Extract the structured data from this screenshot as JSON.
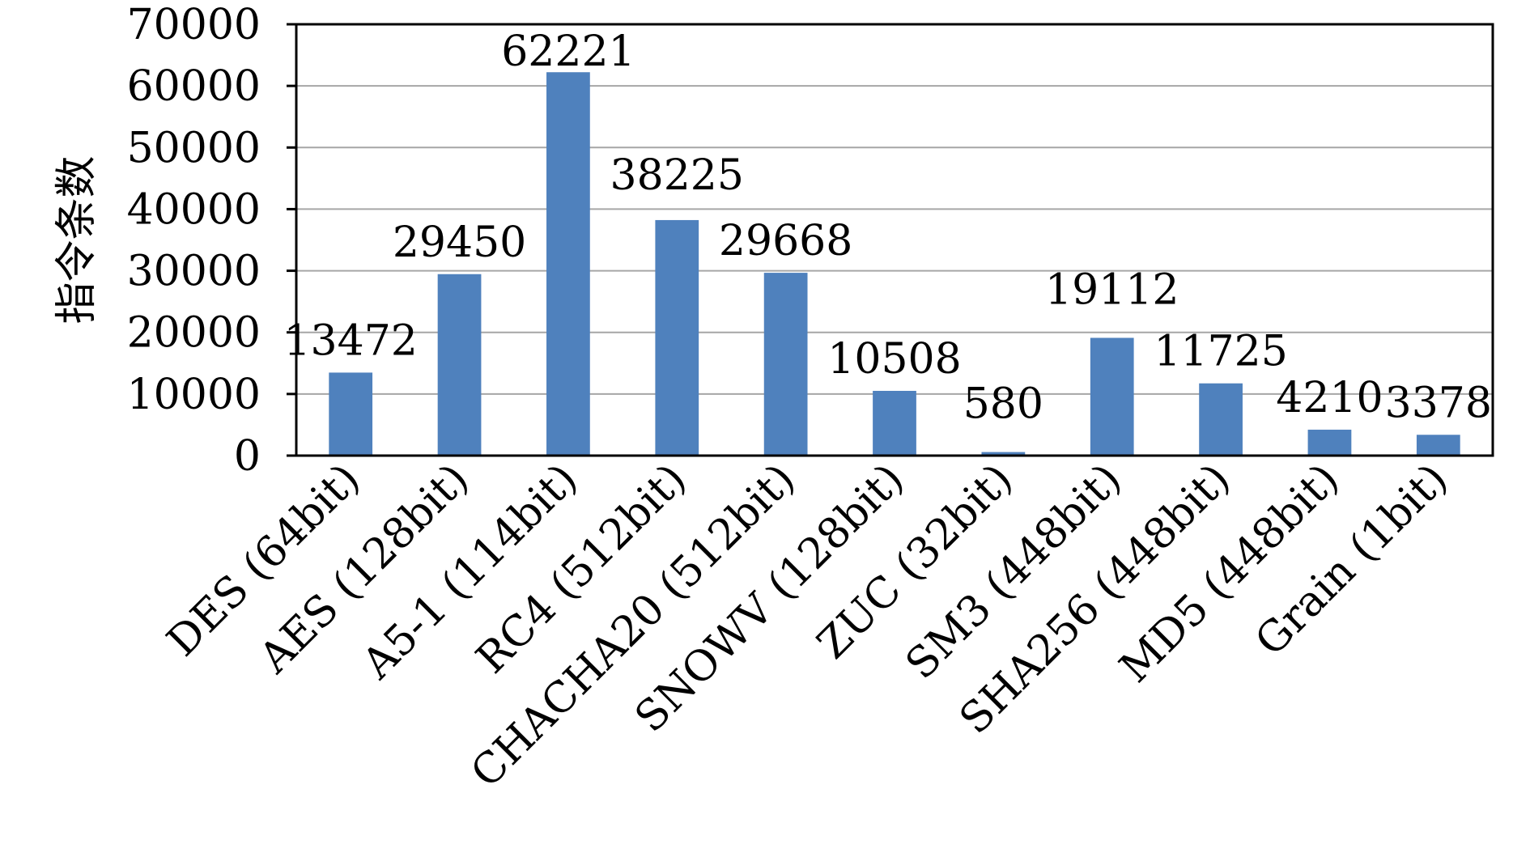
{
  "chart_data": {
    "type": "bar",
    "title": "",
    "xlabel": "",
    "ylabel": "指令条数",
    "ylim": [
      0,
      70000
    ],
    "yticks": [
      0,
      10000,
      20000,
      30000,
      40000,
      50000,
      60000,
      70000
    ],
    "ytick_labels": [
      "0",
      "10000",
      "20000",
      "30000",
      "40000",
      "50000",
      "60000",
      "70000"
    ],
    "grid": true,
    "legend": "none",
    "bar_color": "#4f81bd",
    "categories": [
      "DES (64bit)",
      "AES (128bit)",
      "A5-1 (114bit)",
      "RC4 (512bit)",
      "CHACHA20 (512bit)",
      "SNOWV (128bit)",
      "ZUC (32bit)",
      "SM3 (448bit)",
      "SHA256 (448bit)",
      "MD5 (448bit)",
      "Grain (1bit)"
    ],
    "values": [
      13472,
      29450,
      62221,
      38225,
      29668,
      10508,
      580,
      19112,
      11725,
      4210,
      3378
    ],
    "data_labels": [
      "13472",
      "29450",
      "62221",
      "38225",
      "29668",
      "10508",
      "580",
      "19112",
      "11725",
      "4210",
      "3378"
    ]
  }
}
